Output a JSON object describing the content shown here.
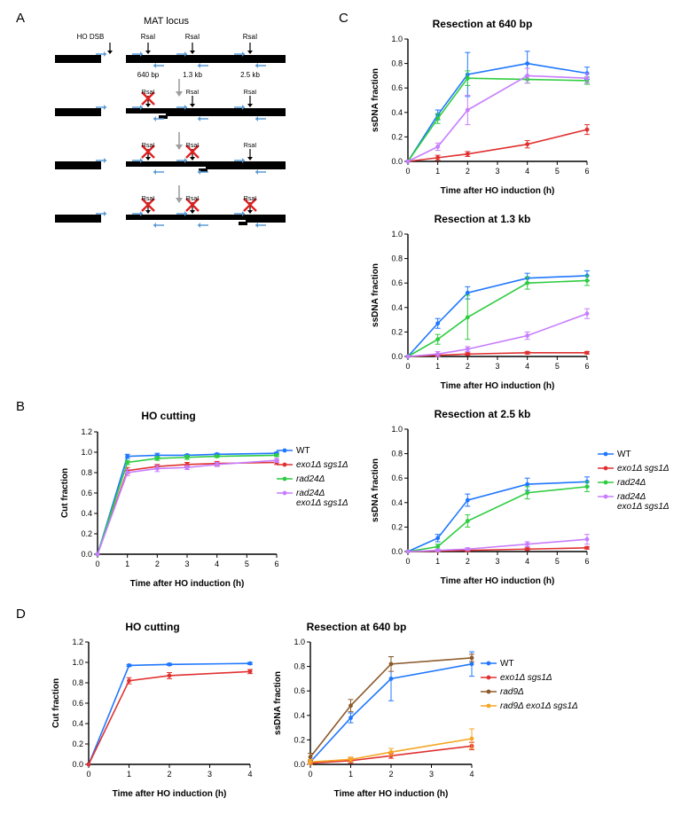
{
  "labels": {
    "A": "A",
    "B": "B",
    "C": "C",
    "D": "D",
    "mat_title": "MAT locus",
    "ho_dsb": "HO DSB",
    "rsai": "RsaI",
    "d640": "640 bp",
    "d13": "1.3 kb",
    "d25": "2.5 kb"
  },
  "chart_defaults": {
    "line_width": 1.6,
    "marker_radius": 2.4,
    "axis_color": "#000000",
    "tick_font": 9,
    "label_font": 10,
    "title_font": 12
  },
  "colors": {
    "WT": "#1f77ff",
    "exo1_sgs1": "#e03131",
    "rad24": "#2ecc40",
    "rad24_exo1_sgs1": "#c77dff",
    "rad9": "#8b5a2b",
    "rad9_exo1_sgs1": "#f5a623",
    "background": "#ffffff"
  },
  "legends": {
    "BC": [
      {
        "key": "WT",
        "label": "WT",
        "italic": false
      },
      {
        "key": "exo1_sgs1",
        "label": "exo1Δ sgs1Δ",
        "italic": true
      },
      {
        "key": "rad24",
        "label": "rad24Δ",
        "italic": true
      },
      {
        "key": "rad24_exo1_sgs1",
        "label": "rad24Δ\nexo1Δ sgs1Δ",
        "italic": true
      }
    ],
    "D": [
      {
        "key": "WT",
        "label": "WT",
        "italic": false
      },
      {
        "key": "exo1_sgs1",
        "label": "exo1Δ sgs1Δ",
        "italic": true
      },
      {
        "key": "rad9",
        "label": "rad9Δ",
        "italic": true
      },
      {
        "key": "rad9_exo1_sgs1",
        "label": "rad9Δ exo1Δ sgs1Δ",
        "italic": true
      }
    ]
  },
  "charts": {
    "B_cut": {
      "title": "HO cutting",
      "xlabel": "Time after HO induction (h)",
      "ylabel": "Cut fraction",
      "xlim": [
        0,
        6
      ],
      "xticks": [
        0,
        1,
        2,
        3,
        4,
        5,
        6
      ],
      "ylim": [
        0,
        1.2
      ],
      "yticks": [
        0,
        0.2,
        0.4,
        0.6,
        0.8,
        1.0,
        1.2
      ],
      "series": [
        {
          "key": "WT",
          "x": [
            0,
            1,
            2,
            3,
            4,
            6
          ],
          "y": [
            0,
            0.96,
            0.97,
            0.97,
            0.98,
            0.99
          ],
          "err": [
            0,
            0.02,
            0.02,
            0.01,
            0.01,
            0.01
          ]
        },
        {
          "key": "exo1_sgs1",
          "x": [
            0,
            1,
            2,
            3,
            4,
            6
          ],
          "y": [
            0,
            0.82,
            0.86,
            0.88,
            0.89,
            0.9
          ],
          "err": [
            0,
            0.03,
            0.02,
            0.02,
            0.02,
            0.02
          ]
        },
        {
          "key": "rad24",
          "x": [
            0,
            1,
            2,
            3,
            4,
            6
          ],
          "y": [
            0,
            0.9,
            0.94,
            0.95,
            0.96,
            0.97
          ],
          "err": [
            0,
            0.02,
            0.02,
            0.02,
            0.01,
            0.01
          ]
        },
        {
          "key": "rad24_exo1_sgs1",
          "x": [
            0,
            1,
            2,
            3,
            4,
            6
          ],
          "y": [
            0,
            0.8,
            0.84,
            0.85,
            0.88,
            0.92
          ],
          "err": [
            0,
            0.03,
            0.03,
            0.02,
            0.02,
            0.02
          ]
        }
      ]
    },
    "C_640": {
      "title": "Resection at 640 bp",
      "xlabel": "Time after HO induction (h)",
      "ylabel": "ssDNA fraction",
      "xlim": [
        0,
        6
      ],
      "xticks": [
        0,
        1,
        2,
        3,
        4,
        5,
        6
      ],
      "ylim": [
        0,
        1.0
      ],
      "yticks": [
        0,
        0.2,
        0.4,
        0.6,
        0.8,
        1.0
      ],
      "series": [
        {
          "key": "WT",
          "x": [
            0,
            1,
            2,
            4,
            6
          ],
          "y": [
            0,
            0.38,
            0.71,
            0.8,
            0.72
          ],
          "err": [
            0,
            0.04,
            0.18,
            0.1,
            0.05
          ]
        },
        {
          "key": "exo1_sgs1",
          "x": [
            0,
            1,
            2,
            4,
            6
          ],
          "y": [
            0,
            0.03,
            0.06,
            0.14,
            0.26
          ],
          "err": [
            0,
            0.02,
            0.02,
            0.03,
            0.04
          ]
        },
        {
          "key": "rad24",
          "x": [
            0,
            1,
            2,
            4,
            6
          ],
          "y": [
            0,
            0.35,
            0.68,
            0.67,
            0.66
          ],
          "err": [
            0,
            0.04,
            0.06,
            0.03,
            0.03
          ]
        },
        {
          "key": "rad24_exo1_sgs1",
          "x": [
            0,
            1,
            2,
            4,
            6
          ],
          "y": [
            0,
            0.12,
            0.42,
            0.7,
            0.68
          ],
          "err": [
            0,
            0.03,
            0.12,
            0.06,
            0.04
          ]
        }
      ]
    },
    "C_13": {
      "title": "Resection at 1.3 kb",
      "xlabel": "Time after HO induction (h)",
      "ylabel": "ssDNA fraction",
      "xlim": [
        0,
        6
      ],
      "xticks": [
        0,
        1,
        2,
        3,
        4,
        5,
        6
      ],
      "ylim": [
        0,
        1.0
      ],
      "yticks": [
        0,
        0.2,
        0.4,
        0.6,
        0.8,
        1.0
      ],
      "series": [
        {
          "key": "WT",
          "x": [
            0,
            1,
            2,
            4,
            6
          ],
          "y": [
            0,
            0.27,
            0.52,
            0.64,
            0.66
          ],
          "err": [
            0,
            0.04,
            0.05,
            0.04,
            0.04
          ]
        },
        {
          "key": "exo1_sgs1",
          "x": [
            0,
            1,
            2,
            4,
            6
          ],
          "y": [
            0,
            0.01,
            0.02,
            0.03,
            0.03
          ],
          "err": [
            0,
            0.01,
            0.01,
            0.01,
            0.01
          ]
        },
        {
          "key": "rad24",
          "x": [
            0,
            1,
            2,
            4,
            6
          ],
          "y": [
            0,
            0.14,
            0.32,
            0.6,
            0.62
          ],
          "err": [
            0,
            0.04,
            0.18,
            0.05,
            0.04
          ]
        },
        {
          "key": "rad24_exo1_sgs1",
          "x": [
            0,
            1,
            2,
            4,
            6
          ],
          "y": [
            0,
            0.02,
            0.06,
            0.17,
            0.35
          ],
          "err": [
            0,
            0.02,
            0.02,
            0.03,
            0.04
          ]
        }
      ]
    },
    "C_25": {
      "title": "Resection at 2.5 kb",
      "xlabel": "Time after HO induction (h)",
      "ylabel": "ssDNA fraction",
      "xlim": [
        0,
        6
      ],
      "xticks": [
        0,
        1,
        2,
        3,
        4,
        5,
        6
      ],
      "ylim": [
        0,
        1.0
      ],
      "yticks": [
        0,
        0.2,
        0.4,
        0.6,
        0.8,
        1.0
      ],
      "series": [
        {
          "key": "WT",
          "x": [
            0,
            1,
            2,
            4,
            6
          ],
          "y": [
            0,
            0.11,
            0.42,
            0.55,
            0.57
          ],
          "err": [
            0,
            0.03,
            0.05,
            0.05,
            0.04
          ]
        },
        {
          "key": "exo1_sgs1",
          "x": [
            0,
            1,
            2,
            4,
            6
          ],
          "y": [
            0,
            0.005,
            0.01,
            0.02,
            0.03
          ],
          "err": [
            0,
            0.005,
            0.01,
            0.01,
            0.01
          ]
        },
        {
          "key": "rad24",
          "x": [
            0,
            1,
            2,
            4,
            6
          ],
          "y": [
            0,
            0.04,
            0.25,
            0.48,
            0.53
          ],
          "err": [
            0,
            0.02,
            0.05,
            0.05,
            0.04
          ]
        },
        {
          "key": "rad24_exo1_sgs1",
          "x": [
            0,
            1,
            2,
            4,
            6
          ],
          "y": [
            0,
            0.01,
            0.02,
            0.06,
            0.1
          ],
          "err": [
            0,
            0.01,
            0.01,
            0.02,
            0.04
          ]
        }
      ]
    },
    "D_cut": {
      "title": "HO cutting",
      "xlabel": "Time after HO induction (h)",
      "ylabel": "Cut fraction",
      "xlim": [
        0,
        4
      ],
      "xticks": [
        0,
        1,
        2,
        3,
        4
      ],
      "ylim": [
        0,
        1.2
      ],
      "yticks": [
        0,
        0.2,
        0.4,
        0.6,
        0.8,
        1.0,
        1.2
      ],
      "series": [
        {
          "key": "WT",
          "x": [
            0,
            1,
            2,
            4
          ],
          "y": [
            0,
            0.97,
            0.98,
            0.99
          ],
          "err": [
            0,
            0.01,
            0.01,
            0.01
          ]
        },
        {
          "key": "exo1_sgs1",
          "x": [
            0,
            1,
            2,
            4
          ],
          "y": [
            0,
            0.82,
            0.87,
            0.91
          ],
          "err": [
            0,
            0.03,
            0.03,
            0.02
          ]
        }
      ]
    },
    "D_640": {
      "title": "Resection at 640 bp",
      "xlabel": "Time after HO induction (h)",
      "ylabel": "ssDNA fraction",
      "xlim": [
        0,
        4
      ],
      "xticks": [
        0,
        1,
        2,
        3,
        4
      ],
      "ylim": [
        0,
        1.0
      ],
      "yticks": [
        0,
        0.2,
        0.4,
        0.6,
        0.8,
        1.0
      ],
      "series": [
        {
          "key": "WT",
          "x": [
            0,
            1,
            2,
            4
          ],
          "y": [
            0.02,
            0.38,
            0.7,
            0.82
          ],
          "err": [
            0.02,
            0.04,
            0.18,
            0.1
          ]
        },
        {
          "key": "exo1_sgs1",
          "x": [
            0,
            1,
            2,
            4
          ],
          "y": [
            0.01,
            0.03,
            0.07,
            0.15
          ],
          "err": [
            0.01,
            0.02,
            0.02,
            0.03
          ]
        },
        {
          "key": "rad9",
          "x": [
            0,
            1,
            2,
            4
          ],
          "y": [
            0.06,
            0.48,
            0.82,
            0.87
          ],
          "err": [
            0.03,
            0.05,
            0.06,
            0.03
          ]
        },
        {
          "key": "rad9_exo1_sgs1",
          "x": [
            0,
            1,
            2,
            4
          ],
          "y": [
            0.02,
            0.04,
            0.1,
            0.21
          ],
          "err": [
            0.02,
            0.02,
            0.03,
            0.08
          ]
        }
      ]
    }
  }
}
